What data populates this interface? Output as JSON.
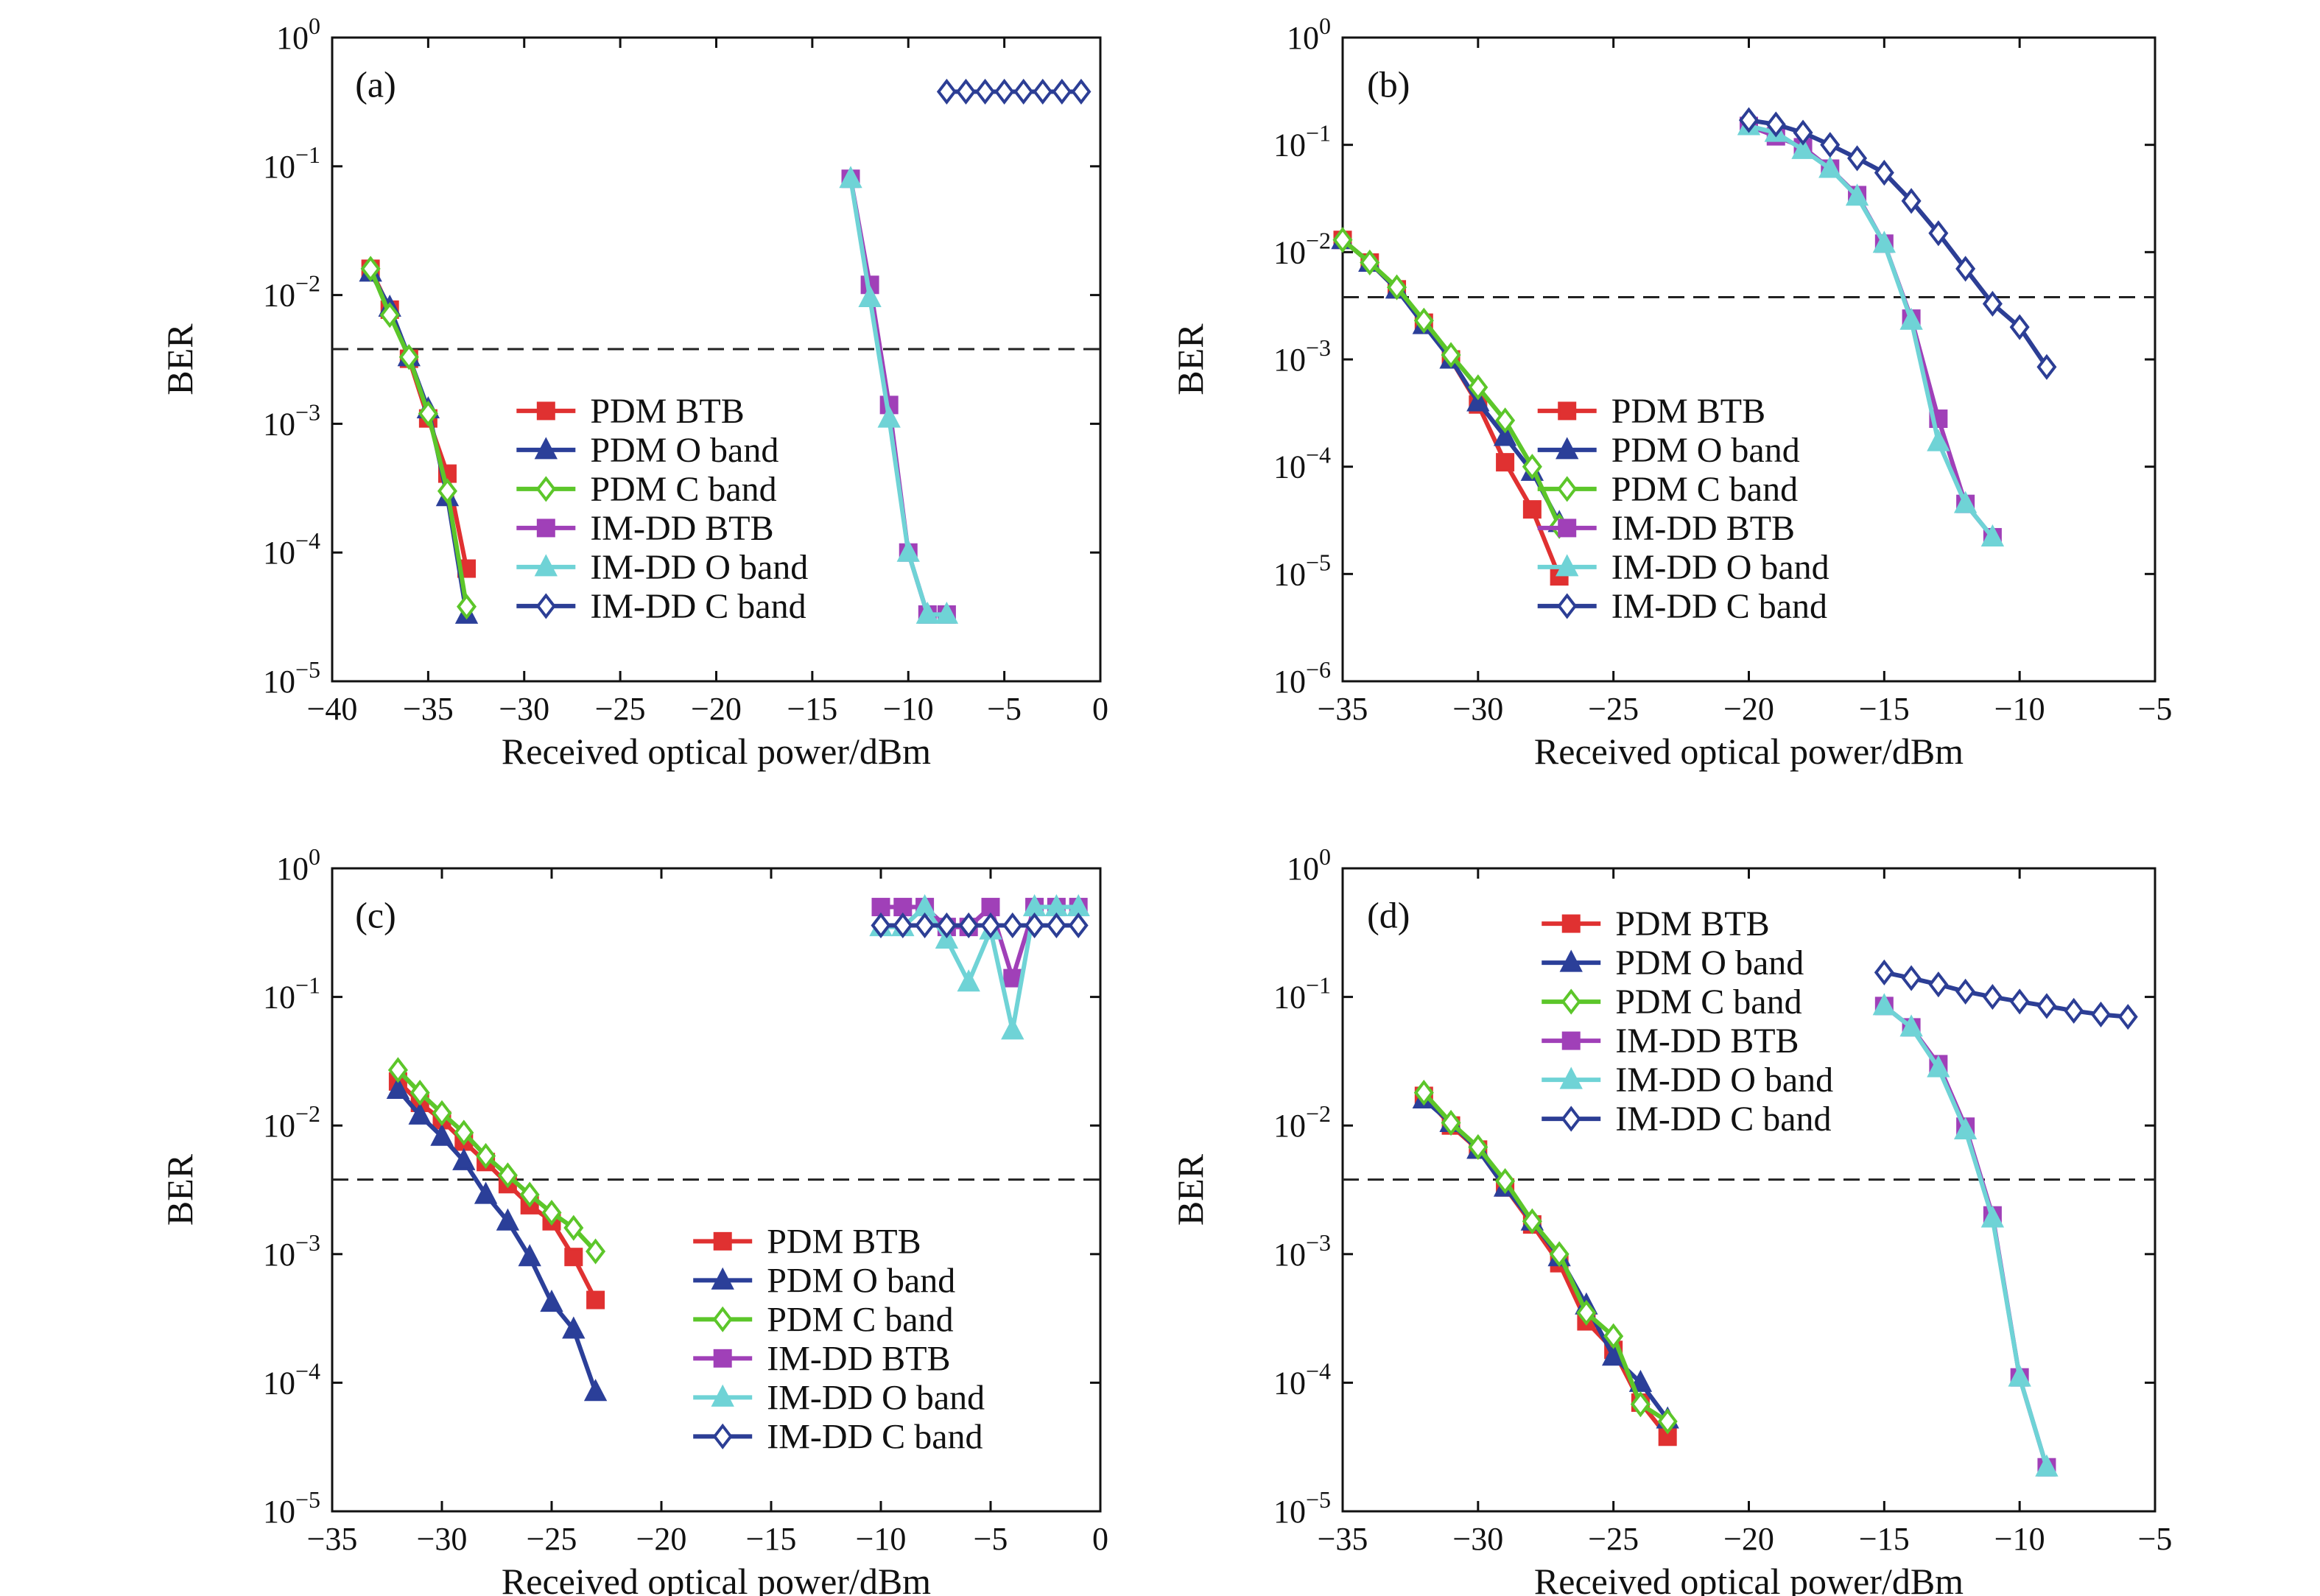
{
  "chart_data": [
    {
      "type": "line",
      "title": "(a)",
      "xlabel": "Received optical power/dBm",
      "ylabel": "BER",
      "yscale": "log",
      "legend": "lower center",
      "threshold": 0.0038,
      "xlim": [
        -40,
        0
      ],
      "xticks": [
        {
          "value": -40,
          "label": "−40"
        },
        {
          "value": -35,
          "label": "−35"
        },
        {
          "value": -30,
          "label": "−30"
        },
        {
          "value": -25,
          "label": "−25"
        },
        {
          "value": -20,
          "label": "−20"
        },
        {
          "value": -15,
          "label": "−15"
        },
        {
          "value": -10,
          "label": "−10"
        },
        {
          "value": -5,
          "label": "−5"
        },
        0
      ],
      "ylim": [
        1e-05,
        1
      ],
      "yticks": [
        {
          "value": 1e-05,
          "label": "10",
          "exponent": "−5"
        },
        {
          "value": 0.0001,
          "label": "10",
          "exponent": "−4"
        },
        {
          "value": 0.001,
          "label": "10",
          "exponent": "−3"
        },
        {
          "value": 0.01,
          "label": "10",
          "exponent": "−2"
        },
        {
          "value": 0.1,
          "label": "10",
          "exponent": "−1"
        },
        {
          "value": 1,
          "label": "10",
          "exponent": "0"
        }
      ],
      "series": [
        {
          "name": "PDM BTB",
          "color": "#e03131",
          "marker": "square",
          "x": [
            -38,
            -37,
            -36,
            -35,
            -34,
            -33
          ],
          "values": [
            0.016,
            0.0077,
            0.0032,
            0.0011,
            0.00041,
            7.5e-05
          ]
        },
        {
          "name": "PDM O band",
          "color": "#2b3f99",
          "marker": "triangle",
          "x": [
            -38,
            -37,
            -36,
            -35,
            -34,
            -33
          ],
          "values": [
            0.015,
            0.008,
            0.0033,
            0.0013,
            0.00027,
            3.3e-05
          ]
        },
        {
          "name": "PDM C band",
          "color": "#5cc62a",
          "marker": "diamond",
          "x": [
            -38,
            -37,
            -36,
            -35,
            -34,
            -33
          ],
          "values": [
            0.016,
            0.007,
            0.0033,
            0.0012,
            0.0003,
            3.8e-05
          ]
        },
        {
          "name": "IM-DD BTB",
          "color": "#a040b8",
          "marker": "square",
          "x": [
            -13,
            -12,
            -11,
            -10,
            -9,
            -8
          ],
          "values": [
            0.08,
            0.012,
            0.0014,
            0.0001,
            3.3e-05,
            3.3e-05
          ]
        },
        {
          "name": "IM-DD O band",
          "color": "#6fd3d6",
          "marker": "triangle",
          "x": [
            -13,
            -12,
            -11,
            -10,
            -9,
            -8
          ],
          "values": [
            0.08,
            0.0095,
            0.0011,
            0.0001,
            3.3e-05,
            3.3e-05
          ]
        },
        {
          "name": "IM-DD C band",
          "color": "#2c3e95",
          "marker": "diamond",
          "x": [
            -8,
            -7,
            -6,
            -5,
            -4,
            -3,
            -2,
            -1
          ],
          "values": [
            0.38,
            0.38,
            0.38,
            0.38,
            0.38,
            0.38,
            0.38,
            0.38
          ]
        }
      ]
    },
    {
      "type": "line",
      "title": "(b)",
      "xlabel": "Received optical power/dBm",
      "ylabel": "BER",
      "yscale": "log",
      "legend": "lower center",
      "threshold": 0.0038,
      "xlim": [
        -35,
        -5
      ],
      "xticks": [
        {
          "value": -35,
          "label": "−35"
        },
        {
          "value": -30,
          "label": "−30"
        },
        {
          "value": -25,
          "label": "−25"
        },
        {
          "value": -20,
          "label": "−20"
        },
        {
          "value": -15,
          "label": "−15"
        },
        {
          "value": -10,
          "label": "−10"
        },
        {
          "value": -5,
          "label": "−5"
        }
      ],
      "ylim": [
        1e-06,
        1
      ],
      "yticks": [
        {
          "value": 1e-06,
          "label": "10",
          "exponent": "−6"
        },
        {
          "value": 1e-05,
          "label": "10",
          "exponent": "−5"
        },
        {
          "value": 0.0001,
          "label": "10",
          "exponent": "−4"
        },
        {
          "value": 0.001,
          "label": "10",
          "exponent": "−3"
        },
        {
          "value": 0.01,
          "label": "10",
          "exponent": "−2"
        },
        {
          "value": 0.1,
          "label": "10",
          "exponent": "−1"
        },
        {
          "value": 1,
          "label": "10",
          "exponent": "0"
        }
      ],
      "series": [
        {
          "name": "PDM BTB",
          "color": "#e03131",
          "marker": "square",
          "x": [
            -35,
            -34,
            -33,
            -32,
            -31,
            -30,
            -29,
            -28,
            -27
          ],
          "values": [
            0.013,
            0.008,
            0.0045,
            0.0022,
            0.001,
            0.00038,
            0.00011,
            4e-05,
            9.5e-06
          ]
        },
        {
          "name": "PDM O band",
          "color": "#2b3f99",
          "marker": "triangle",
          "x": [
            -35,
            -34,
            -33,
            -32,
            -31,
            -30,
            -29,
            -28,
            -27
          ],
          "values": [
            0.013,
            0.008,
            0.0045,
            0.0021,
            0.001,
            0.0004,
            0.00019,
            9e-05,
            3e-05
          ]
        },
        {
          "name": "PDM C band",
          "color": "#5cc62a",
          "marker": "diamond",
          "x": [
            -35,
            -34,
            -33,
            -32,
            -31,
            -30,
            -29,
            -28,
            -27
          ],
          "values": [
            0.013,
            0.008,
            0.0047,
            0.0023,
            0.0011,
            0.00055,
            0.00027,
            0.0001,
            2.8e-05
          ]
        },
        {
          "name": "IM-DD BTB",
          "color": "#a040b8",
          "marker": "square",
          "x": [
            -20,
            -19,
            -18,
            -17,
            -16,
            -15,
            -14,
            -13,
            -12,
            -11
          ],
          "values": [
            0.15,
            0.12,
            0.095,
            0.06,
            0.034,
            0.012,
            0.0024,
            0.00028,
            4.5e-05,
            2.2e-05
          ]
        },
        {
          "name": "IM-DD O band",
          "color": "#6fd3d6",
          "marker": "triangle",
          "x": [
            -20,
            -19,
            -18,
            -17,
            -16,
            -15,
            -14,
            -13,
            -12,
            -11
          ],
          "values": [
            0.15,
            0.13,
            0.09,
            0.06,
            0.033,
            0.012,
            0.0023,
            0.00017,
            4.5e-05,
            2.2e-05
          ]
        },
        {
          "name": "IM-DD C band",
          "color": "#2c3e95",
          "marker": "diamond",
          "x": [
            -20,
            -19,
            -18,
            -17,
            -16,
            -15,
            -14,
            -13,
            -12,
            -11,
            -10,
            -9
          ],
          "values": [
            0.17,
            0.155,
            0.13,
            0.1,
            0.075,
            0.055,
            0.03,
            0.015,
            0.007,
            0.0033,
            0.002,
            0.00085
          ]
        }
      ]
    },
    {
      "type": "line",
      "title": "(c)",
      "xlabel": "Received optical power/dBm",
      "ylabel": "BER",
      "yscale": "log",
      "legend": "lower right",
      "threshold": 0.0038,
      "xlim": [
        -35,
        0
      ],
      "xticks": [
        {
          "value": -35,
          "label": "−35"
        },
        {
          "value": -30,
          "label": "−30"
        },
        {
          "value": -25,
          "label": "−25"
        },
        {
          "value": -20,
          "label": "−20"
        },
        {
          "value": -15,
          "label": "−15"
        },
        {
          "value": -10,
          "label": "−10"
        },
        {
          "value": -5,
          "label": "−5"
        },
        0
      ],
      "ylim": [
        1e-05,
        1
      ],
      "yticks": [
        {
          "value": 1e-05,
          "label": "10",
          "exponent": "−5"
        },
        {
          "value": 0.0001,
          "label": "10",
          "exponent": "−4"
        },
        {
          "value": 0.001,
          "label": "10",
          "exponent": "−3"
        },
        {
          "value": 0.01,
          "label": "10",
          "exponent": "−2"
        },
        {
          "value": 0.1,
          "label": "10",
          "exponent": "−1"
        },
        {
          "value": 1,
          "label": "10",
          "exponent": "0"
        }
      ],
      "series": [
        {
          "name": "PDM BTB",
          "color": "#e03131",
          "marker": "square",
          "x": [
            -32,
            -31,
            -30,
            -29,
            -28,
            -27,
            -26,
            -25,
            -24,
            -23
          ],
          "values": [
            0.022,
            0.015,
            0.011,
            0.0075,
            0.0052,
            0.0035,
            0.0024,
            0.0018,
            0.00095,
            0.00044
          ]
        },
        {
          "name": "PDM O band",
          "color": "#2b3f99",
          "marker": "triangle",
          "x": [
            -32,
            -31,
            -30,
            -29,
            -28,
            -27,
            -26,
            -25,
            -24,
            -23
          ],
          "values": [
            0.019,
            0.012,
            0.0082,
            0.0053,
            0.0029,
            0.0018,
            0.00095,
            0.00042,
            0.00026,
            8.5e-05
          ]
        },
        {
          "name": "PDM C band",
          "color": "#5cc62a",
          "marker": "diamond",
          "x": [
            -32,
            -31,
            -30,
            -29,
            -28,
            -27,
            -26,
            -25,
            -24,
            -23
          ],
          "values": [
            0.027,
            0.018,
            0.0125,
            0.0088,
            0.0058,
            0.0041,
            0.0029,
            0.0021,
            0.0016,
            0.00105
          ]
        },
        {
          "name": "IM-DD BTB",
          "color": "#a040b8",
          "marker": "square",
          "x": [
            -10,
            -9,
            -8,
            -7,
            -6,
            -5,
            -4,
            -3,
            -2,
            -1
          ],
          "values": [
            0.5,
            0.5,
            0.5,
            0.35,
            0.35,
            0.5,
            0.14,
            0.5,
            0.5,
            0.5
          ]
        },
        {
          "name": "IM-DD O band",
          "color": "#6fd3d6",
          "marker": "triangle",
          "x": [
            -10,
            -9,
            -8,
            -7,
            -6,
            -5,
            -4,
            -3,
            -2,
            -1
          ],
          "values": [
            0.35,
            0.35,
            0.5,
            0.28,
            0.13,
            0.33,
            0.055,
            0.5,
            0.5,
            0.5
          ]
        },
        {
          "name": "IM-DD C band",
          "color": "#2c3e95",
          "marker": "diamond",
          "x": [
            -10,
            -9,
            -8,
            -7,
            -6,
            -5,
            -4,
            -3,
            -2,
            -1
          ],
          "values": [
            0.36,
            0.36,
            0.36,
            0.36,
            0.36,
            0.36,
            0.36,
            0.36,
            0.36,
            0.36
          ]
        }
      ]
    },
    {
      "type": "line",
      "title": "(d)",
      "xlabel": "Received optical power/dBm",
      "ylabel": "BER",
      "yscale": "log",
      "legend": "upper left",
      "threshold": 0.0038,
      "xlim": [
        -35,
        -5
      ],
      "xticks": [
        {
          "value": -35,
          "label": "−35"
        },
        {
          "value": -30,
          "label": "−30"
        },
        {
          "value": -25,
          "label": "−25"
        },
        {
          "value": -20,
          "label": "−20"
        },
        {
          "value": -15,
          "label": "−15"
        },
        {
          "value": -10,
          "label": "−10"
        },
        {
          "value": -5,
          "label": "−5"
        }
      ],
      "ylim": [
        1e-05,
        1
      ],
      "yticks": [
        {
          "value": 1e-05,
          "label": "10",
          "exponent": "−5"
        },
        {
          "value": 0.0001,
          "label": "10",
          "exponent": "−4"
        },
        {
          "value": 0.001,
          "label": "10",
          "exponent": "−3"
        },
        {
          "value": 0.01,
          "label": "10",
          "exponent": "−2"
        },
        {
          "value": 0.1,
          "label": "10",
          "exponent": "−1"
        },
        {
          "value": 1,
          "label": "10",
          "exponent": "0"
        }
      ],
      "series": [
        {
          "name": "PDM BTB",
          "color": "#e03131",
          "marker": "square",
          "x": [
            -32,
            -31,
            -30,
            -29,
            -28,
            -27,
            -26,
            -25,
            -24,
            -23
          ],
          "values": [
            0.017,
            0.01,
            0.0065,
            0.0033,
            0.0017,
            0.00085,
            0.0003,
            0.00018,
            7e-05,
            3.8e-05
          ]
        },
        {
          "name": "PDM O band",
          "color": "#2b3f99",
          "marker": "triangle",
          "x": [
            -32,
            -31,
            -30,
            -29,
            -28,
            -27,
            -26,
            -25,
            -24,
            -23
          ],
          "values": [
            0.016,
            0.0105,
            0.0065,
            0.0033,
            0.0018,
            0.00095,
            0.0004,
            0.00016,
            0.0001,
            5.2e-05
          ]
        },
        {
          "name": "PDM C band",
          "color": "#5cc62a",
          "marker": "diamond",
          "x": [
            -32,
            -31,
            -30,
            -29,
            -28,
            -27,
            -26,
            -25,
            -24,
            -23
          ],
          "values": [
            0.018,
            0.0105,
            0.0068,
            0.0037,
            0.0018,
            0.001,
            0.00035,
            0.00023,
            6.8e-05,
            5e-05
          ]
        },
        {
          "name": "IM-DD BTB",
          "color": "#a040b8",
          "marker": "square",
          "x": [
            -15,
            -14,
            -13,
            -12,
            -11,
            -10,
            -9
          ],
          "values": [
            0.085,
            0.058,
            0.03,
            0.0098,
            0.002,
            0.00011,
            2.2e-05
          ]
        },
        {
          "name": "IM-DD O band",
          "color": "#6fd3d6",
          "marker": "triangle",
          "x": [
            -15,
            -14,
            -13,
            -12,
            -11,
            -10,
            -9
          ],
          "values": [
            0.085,
            0.058,
            0.028,
            0.0092,
            0.0019,
            0.00011,
            2.2e-05
          ]
        },
        {
          "name": "IM-DD C band",
          "color": "#2c3e95",
          "marker": "diamond",
          "x": [
            -15,
            -14,
            -13,
            -12,
            -11,
            -10,
            -9,
            -8,
            -7,
            -6
          ],
          "values": [
            0.155,
            0.14,
            0.125,
            0.11,
            0.1,
            0.092,
            0.085,
            0.078,
            0.073,
            0.07
          ]
        }
      ]
    }
  ]
}
